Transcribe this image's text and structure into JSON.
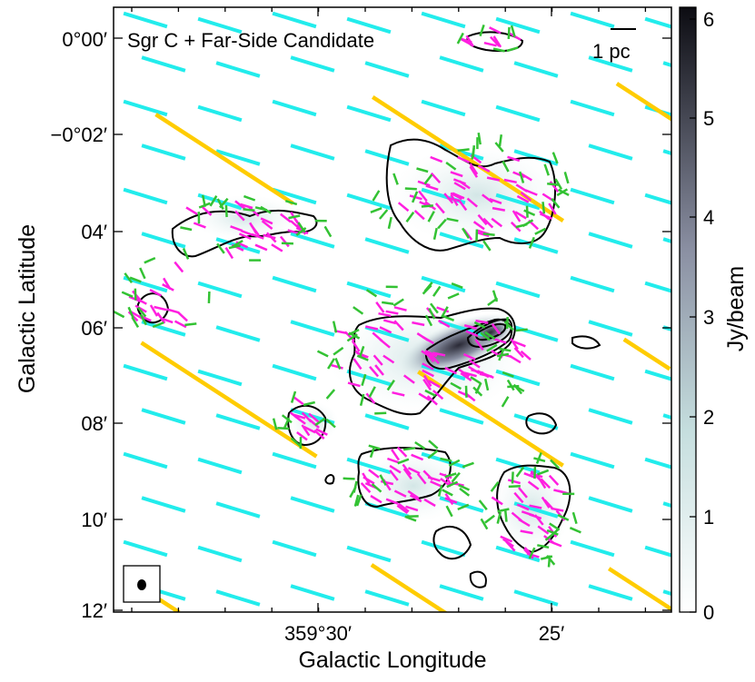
{
  "figure": {
    "title": "Sgr C + Far-Side Candidate",
    "scalebar_label": "1 pc",
    "xlabel": "Galactic Longitude",
    "ylabel": "Galactic Latitude",
    "x_ticks": [
      "359°30′",
      "25′"
    ],
    "y_ticks": [
      "0°00′",
      "−0°02′",
      "04′",
      "06′",
      "08′",
      "10′",
      "12′"
    ],
    "colorbar": {
      "label": "Jy/beam",
      "ticks": [
        "0",
        "1",
        "2",
        "3",
        "4",
        "5",
        "6"
      ],
      "range": [
        0,
        6.1
      ]
    },
    "colors": {
      "background_field_vectors": "#22ecec",
      "large_scale_vectors": "#ffcc00",
      "polarization_vectors_a": "#ff1fe0",
      "polarization_vectors_b": "#33c233",
      "contours": "#000000"
    }
  }
}
